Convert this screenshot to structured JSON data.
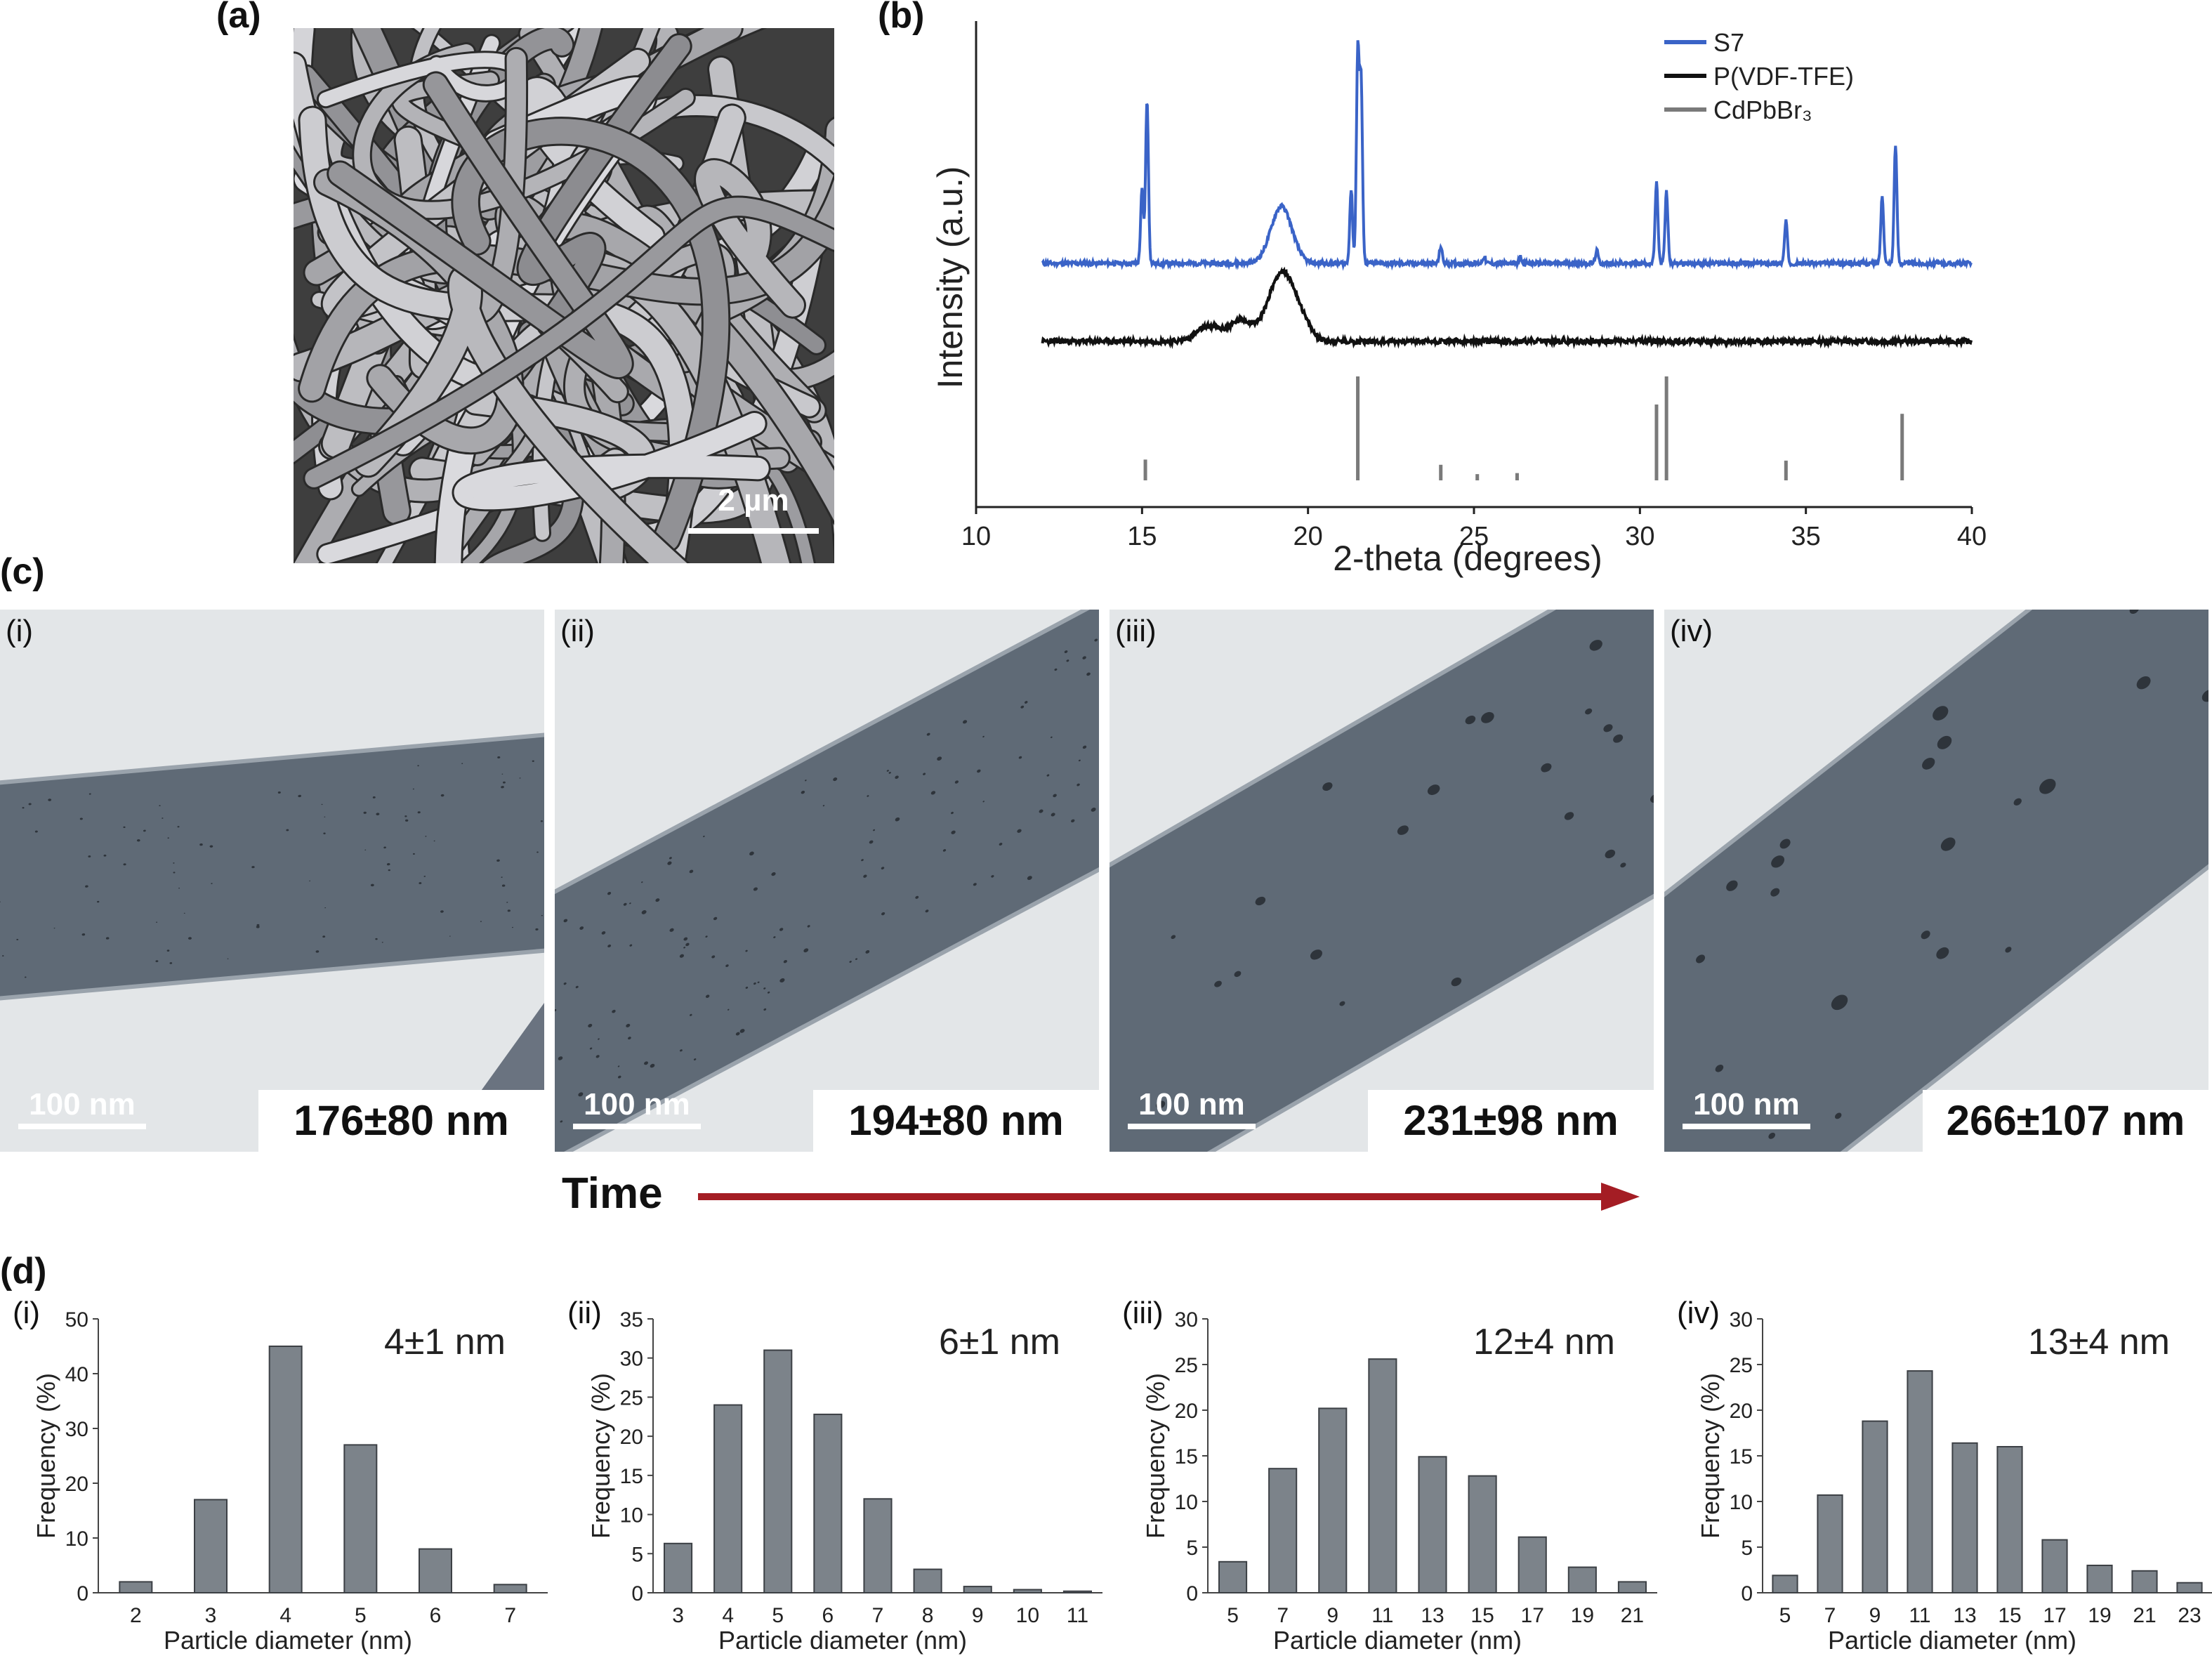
{
  "panels": {
    "a": "(a)",
    "b": "(b)",
    "c": "(c)",
    "d": "(d)"
  },
  "sem": {
    "scalebar": "2 µm"
  },
  "xrd": {
    "ylabel": "Intensity (a.u.)",
    "xlabel": "2-theta (degrees)",
    "xticks": [
      "10",
      "15",
      "20",
      "25",
      "30",
      "35",
      "40"
    ],
    "legend": [
      {
        "name": "S7",
        "color": "#3a63c7"
      },
      {
        "name": "P(VDF-TFE)",
        "color": "#111111"
      },
      {
        "name": "CdPbBr₃",
        "color": "#7a7a7a"
      }
    ]
  },
  "tem": [
    {
      "roman": "(i)",
      "scale": "100 nm",
      "size": "176±80 nm"
    },
    {
      "roman": "(ii)",
      "scale": "100 nm",
      "size": "194±80 nm"
    },
    {
      "roman": "(iii)",
      "scale": "100 nm",
      "size": "231±98 nm"
    },
    {
      "roman": "(iv)",
      "scale": "100 nm",
      "size": "266±107 nm"
    }
  ],
  "time": {
    "label": "Time",
    "color": "#a41d24"
  },
  "chart_data": [
    {
      "type": "line",
      "xlabel": "2-theta (degrees)",
      "ylabel": "Intensity (a.u.)",
      "xlim": [
        10,
        40
      ],
      "series": [
        {
          "name": "S7",
          "peaks": [
            [
              15.0,
              0.35
            ],
            [
              15.15,
              0.78
            ],
            [
              19.2,
              0.27
            ],
            [
              21.3,
              0.35
            ],
            [
              21.5,
              1.0
            ],
            [
              21.6,
              0.85
            ],
            [
              24.0,
              0.08
            ],
            [
              25.3,
              0.03
            ],
            [
              26.4,
              0.03
            ],
            [
              28.7,
              0.06
            ],
            [
              30.5,
              0.38
            ],
            [
              30.8,
              0.34
            ],
            [
              34.4,
              0.2
            ],
            [
              37.3,
              0.32
            ],
            [
              37.7,
              0.56
            ]
          ]
        },
        {
          "name": "P(VDF-TFE)",
          "peaks": [
            [
              17.0,
              0.07
            ],
            [
              18.0,
              0.1
            ],
            [
              19.1,
              0.26
            ],
            [
              19.6,
              0.15
            ]
          ]
        },
        {
          "name": "CdPbBr₃",
          "sticks": [
            [
              15.1,
              0.2
            ],
            [
              21.5,
              1.0
            ],
            [
              24.0,
              0.15
            ],
            [
              25.1,
              0.06
            ],
            [
              26.3,
              0.07
            ],
            [
              30.5,
              0.73
            ],
            [
              30.8,
              1.0
            ],
            [
              34.4,
              0.19
            ],
            [
              37.9,
              0.64
            ]
          ]
        }
      ]
    },
    {
      "type": "bar",
      "roman": "(i)",
      "annotation": "4±1 nm",
      "xlabel": "Particle diameter (nm)",
      "ylabel": "Frequency (%)",
      "ylim": [
        0,
        50
      ],
      "yticks": [
        "0",
        "10",
        "20",
        "30",
        "40",
        "50"
      ],
      "categories": [
        "2",
        "3",
        "4",
        "5",
        "6",
        "7"
      ],
      "values": [
        2,
        17,
        45,
        27,
        8,
        1.5
      ]
    },
    {
      "type": "bar",
      "roman": "(ii)",
      "annotation": "6±1 nm",
      "xlabel": "Particle diameter (nm)",
      "ylabel": "Frequency (%)",
      "ylim": [
        0,
        35
      ],
      "yticks": [
        "0",
        "5",
        "10",
        "15",
        "20",
        "25",
        "30",
        "35"
      ],
      "categories": [
        "3",
        "4",
        "5",
        "6",
        "7",
        "8",
        "9",
        "10",
        "11"
      ],
      "values": [
        6.3,
        24,
        31,
        22.8,
        12,
        3,
        0.8,
        0.4,
        0.2
      ]
    },
    {
      "type": "bar",
      "roman": "(iii)",
      "annotation": "12±4 nm",
      "xlabel": "Particle diameter (nm)",
      "ylabel": "Frequency (%)",
      "ylim": [
        0,
        30
      ],
      "yticks": [
        "0",
        "5",
        "10",
        "15",
        "20",
        "25",
        "30"
      ],
      "categories": [
        "5",
        "7",
        "9",
        "11",
        "13",
        "15",
        "17",
        "19",
        "21"
      ],
      "values": [
        3.4,
        13.6,
        20.2,
        25.6,
        14.9,
        12.8,
        6.1,
        2.8,
        1.2
      ]
    },
    {
      "type": "bar",
      "roman": "(iv)",
      "annotation": "13±4 nm",
      "xlabel": "Particle diameter (nm)",
      "ylabel": "Frequency (%)",
      "ylim": [
        0,
        30
      ],
      "yticks": [
        "0",
        "5",
        "10",
        "15",
        "20",
        "25",
        "30"
      ],
      "categories": [
        "5",
        "7",
        "9",
        "11",
        "13",
        "15",
        "17",
        "19",
        "21",
        "23"
      ],
      "values": [
        1.9,
        10.7,
        18.8,
        24.3,
        16.4,
        16,
        5.8,
        3,
        2.4,
        1.1
      ]
    }
  ]
}
